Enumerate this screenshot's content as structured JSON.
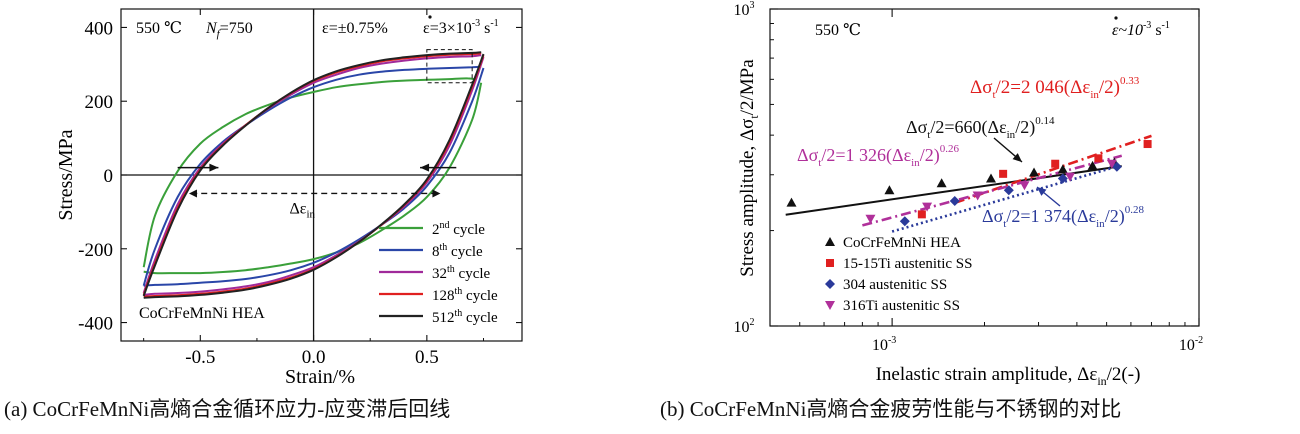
{
  "captions": {
    "a": "(a) CoCrFeMnNi高熵合金循环应力-应变滞后回线",
    "b": "(b) CoCrFeMnNi高熵合金疲劳性能与不锈钢的对比"
  },
  "chart_data": [
    {
      "type": "line",
      "panel": "a",
      "xlabel": "Strain/%",
      "ylabel": "Stress/MPa",
      "xlim": [
        -0.85,
        0.92
      ],
      "ylim": [
        -450,
        450
      ],
      "xticks": [
        "-0.5",
        "0.0",
        "0.5"
      ],
      "yticks": [
        "400",
        "200",
        "0",
        "-200",
        "-400"
      ],
      "header": {
        "temp": "550 ℃",
        "nf": "N",
        "nf_sub": "f",
        "nf_val": "=750",
        "eps_amp": "ε=±0.75%",
        "rate": "ε=3×10",
        "rate_exp": "-3",
        "rate_unit": " s",
        "rate_unit_exp": "-1"
      },
      "annotation": {
        "text": "Δε",
        "sub": "in"
      },
      "material_label": "CoCrFeMnNi HEA",
      "series": [
        {
          "name": "2nd cycle",
          "legend_num": "2",
          "legend_sup": "nd",
          "legend_rest": " cycle",
          "color": "#3aa03a",
          "upper": [
            [
              -0.75,
              -250
            ],
            [
              -0.7,
              -110
            ],
            [
              -0.6,
              10
            ],
            [
              -0.5,
              85
            ],
            [
              -0.4,
              130
            ],
            [
              -0.3,
              165
            ],
            [
              -0.2,
              190
            ],
            [
              -0.1,
              210
            ],
            [
              0.0,
              225
            ],
            [
              0.1,
              238
            ],
            [
              0.2,
              246
            ],
            [
              0.3,
              252
            ],
            [
              0.4,
              256
            ],
            [
              0.5,
              258
            ],
            [
              0.6,
              260
            ],
            [
              0.68,
              262
            ],
            [
              0.72,
              258
            ]
          ],
          "lower": [
            [
              0.74,
              250
            ],
            [
              0.7,
              150
            ],
            [
              0.6,
              20
            ],
            [
              0.5,
              -60
            ],
            [
              0.4,
              -110
            ],
            [
              0.3,
              -150
            ],
            [
              0.2,
              -185
            ],
            [
              0.1,
              -210
            ],
            [
              0.0,
              -228
            ],
            [
              -0.1,
              -240
            ],
            [
              -0.2,
              -250
            ],
            [
              -0.3,
              -258
            ],
            [
              -0.4,
              -263
            ],
            [
              -0.5,
              -266
            ],
            [
              -0.6,
              -266
            ],
            [
              -0.7,
              -266
            ],
            [
              -0.75,
              -262
            ]
          ]
        },
        {
          "name": "8th cycle",
          "legend_num": "8",
          "legend_sup": "th",
          "legend_rest": " cycle",
          "color": "#2a46a8",
          "upper": [
            [
              -0.75,
              -300
            ],
            [
              -0.7,
              -200
            ],
            [
              -0.6,
              -60
            ],
            [
              -0.5,
              30
            ],
            [
              -0.4,
              90
            ],
            [
              -0.3,
              135
            ],
            [
              -0.2,
              175
            ],
            [
              -0.1,
              210
            ],
            [
              0.0,
              238
            ],
            [
              0.1,
              258
            ],
            [
              0.2,
              272
            ],
            [
              0.3,
              280
            ],
            [
              0.4,
              285
            ],
            [
              0.5,
              288
            ],
            [
              0.6,
              290
            ],
            [
              0.7,
              292
            ],
            [
              0.74,
              294
            ]
          ],
          "lower": [
            [
              0.75,
              290
            ],
            [
              0.7,
              200
            ],
            [
              0.6,
              60
            ],
            [
              0.5,
              -30
            ],
            [
              0.4,
              -90
            ],
            [
              0.3,
              -135
            ],
            [
              0.2,
              -175
            ],
            [
              0.1,
              -210
            ],
            [
              0.0,
              -238
            ],
            [
              -0.1,
              -258
            ],
            [
              -0.2,
              -272
            ],
            [
              -0.3,
              -282
            ],
            [
              -0.4,
              -288
            ],
            [
              -0.5,
              -292
            ],
            [
              -0.6,
              -296
            ],
            [
              -0.7,
              -298
            ],
            [
              -0.75,
              -300
            ]
          ]
        },
        {
          "name": "32th cycle",
          "legend_num": "32",
          "legend_sup": "th",
          "legend_rest": " cycle",
          "color": "#a02a9a",
          "upper": [
            [
              -0.75,
              -320
            ],
            [
              -0.7,
              -230
            ],
            [
              -0.6,
              -80
            ],
            [
              -0.5,
              20
            ],
            [
              -0.4,
              85
            ],
            [
              -0.3,
              135
            ],
            [
              -0.2,
              180
            ],
            [
              -0.1,
              218
            ],
            [
              0.0,
              250
            ],
            [
              0.1,
              272
            ],
            [
              0.2,
              290
            ],
            [
              0.3,
              302
            ],
            [
              0.4,
              310
            ],
            [
              0.5,
              316
            ],
            [
              0.6,
              320
            ],
            [
              0.7,
              322
            ],
            [
              0.74,
              325
            ]
          ],
          "lower": [
            [
              0.75,
              320
            ],
            [
              0.7,
              230
            ],
            [
              0.6,
              80
            ],
            [
              0.5,
              -20
            ],
            [
              0.4,
              -85
            ],
            [
              0.3,
              -135
            ],
            [
              0.2,
              -180
            ],
            [
              0.1,
              -218
            ],
            [
              0.0,
              -250
            ],
            [
              -0.1,
              -272
            ],
            [
              -0.2,
              -290
            ],
            [
              -0.3,
              -302
            ],
            [
              -0.4,
              -310
            ],
            [
              -0.5,
              -316
            ],
            [
              -0.6,
              -320
            ],
            [
              -0.7,
              -322
            ],
            [
              -0.75,
              -325
            ]
          ]
        },
        {
          "name": "128th cycle",
          "legend_num": "128",
          "legend_sup": "th",
          "legend_rest": " cycle",
          "color": "#e02020",
          "upper": [
            [
              -0.75,
              -325
            ],
            [
              -0.7,
              -240
            ],
            [
              -0.6,
              -90
            ],
            [
              -0.5,
              15
            ],
            [
              -0.4,
              82
            ],
            [
              -0.3,
              135
            ],
            [
              -0.2,
              182
            ],
            [
              -0.1,
              222
            ],
            [
              0.0,
              255
            ],
            [
              0.1,
              278
            ],
            [
              0.2,
              295
            ],
            [
              0.3,
              308
            ],
            [
              0.4,
              316
            ],
            [
              0.5,
              322
            ],
            [
              0.6,
              326
            ],
            [
              0.7,
              328
            ],
            [
              0.74,
              330
            ]
          ],
          "lower": [
            [
              0.75,
              325
            ],
            [
              0.7,
              240
            ],
            [
              0.6,
              90
            ],
            [
              0.5,
              -15
            ],
            [
              0.4,
              -82
            ],
            [
              0.3,
              -135
            ],
            [
              0.2,
              -182
            ],
            [
              0.1,
              -222
            ],
            [
              0.0,
              -255
            ],
            [
              -0.1,
              -278
            ],
            [
              -0.2,
              -295
            ],
            [
              -0.3,
              -308
            ],
            [
              -0.4,
              -316
            ],
            [
              -0.5,
              -322
            ],
            [
              -0.6,
              -326
            ],
            [
              -0.7,
              -328
            ],
            [
              -0.75,
              -330
            ]
          ]
        },
        {
          "name": "512th cycle",
          "legend_num": "512",
          "legend_sup": "th",
          "legend_rest": " cycle",
          "color": "#222222",
          "upper": [
            [
              -0.75,
              -328
            ],
            [
              -0.7,
              -245
            ],
            [
              -0.6,
              -95
            ],
            [
              -0.5,
              12
            ],
            [
              -0.4,
              80
            ],
            [
              -0.3,
              134
            ],
            [
              -0.2,
              182
            ],
            [
              -0.1,
              223
            ],
            [
              0.0,
              257
            ],
            [
              0.1,
              281
            ],
            [
              0.2,
              298
            ],
            [
              0.3,
              311
            ],
            [
              0.4,
              319
            ],
            [
              0.5,
              325
            ],
            [
              0.6,
              329
            ],
            [
              0.7,
              331
            ],
            [
              0.74,
              333
            ]
          ],
          "lower": [
            [
              0.75,
              328
            ],
            [
              0.7,
              245
            ],
            [
              0.6,
              95
            ],
            [
              0.5,
              -12
            ],
            [
              0.4,
              -80
            ],
            [
              0.3,
              -134
            ],
            [
              0.2,
              -182
            ],
            [
              0.1,
              -223
            ],
            [
              0.0,
              -257
            ],
            [
              -0.1,
              -281
            ],
            [
              -0.2,
              -298
            ],
            [
              -0.3,
              -311
            ],
            [
              -0.4,
              -319
            ],
            [
              -0.5,
              -325
            ],
            [
              -0.6,
              -329
            ],
            [
              -0.7,
              -331
            ],
            [
              -0.75,
              -333
            ]
          ]
        }
      ]
    },
    {
      "type": "scatter",
      "panel": "b",
      "xscale": "log",
      "yscale": "log",
      "xlabel_main": "Inelastic strain amplitude, Δε",
      "xlabel_sub": "in",
      "xlabel_tail": "/2(-)",
      "ylabel_main": "Stress amplitude, Δσ",
      "ylabel_sub": "t",
      "ylabel_tail": "/2/MPa",
      "xlim": [
        0.0004,
        0.01
      ],
      "ylim": [
        100,
        1000
      ],
      "xticks": [
        {
          "value": 0.001,
          "base": "10",
          "exp": "-3"
        },
        {
          "value": 0.01,
          "base": "10",
          "exp": "-2"
        }
      ],
      "yticks": [
        {
          "value": 100,
          "base": "10",
          "exp": "2"
        },
        {
          "value": 1000,
          "base": "10",
          "exp": "3"
        }
      ],
      "header": {
        "temp": "550 ℃",
        "rate": "ε~10",
        "rate_exp": "-3",
        "rate_unit": " s",
        "rate_unit_exp": "-1"
      },
      "series": [
        {
          "name": "CoCrFeMnNi HEA",
          "marker": "triangle",
          "color": "#111111",
          "points": [
            [
              0.00047,
              245
            ],
            [
              0.00098,
              268
            ],
            [
              0.00145,
              282
            ],
            [
              0.0021,
              292
            ],
            [
              0.0029,
              305
            ],
            [
              0.0036,
              312
            ],
            [
              0.0045,
              320
            ],
            [
              0.0053,
              328
            ]
          ],
          "fit": {
            "prefix": "Δσ",
            "sub1": "t",
            "mid": "/2=660(Δε",
            "sub2": "in",
            "tail": "/2)",
            "exp": "0.14",
            "color": "#111111",
            "style": "solid",
            "coef": 660,
            "n": 0.14,
            "range": [
              0.00045,
              0.0056
            ]
          }
        },
        {
          "name": "15-15Ti austenitic SS",
          "marker": "square",
          "color": "#e02020",
          "points": [
            [
              0.00125,
              225
            ],
            [
              0.0023,
              302
            ],
            [
              0.0034,
              325
            ],
            [
              0.0047,
              338
            ],
            [
              0.0068,
              375
            ]
          ],
          "fit": {
            "prefix": "Δσ",
            "sub1": "t",
            "mid": "/2=2 046(Δε",
            "sub2": "in",
            "tail": "/2)",
            "exp": "0.33",
            "color": "#e02020",
            "style": "dashdot",
            "coef": 2046,
            "n": 0.33,
            "range": [
              0.0016,
              0.007
            ]
          }
        },
        {
          "name": "304 austenitic SS",
          "marker": "diamond",
          "color": "#2a3a9a",
          "points": [
            [
              0.0011,
              214
            ],
            [
              0.0016,
              248
            ],
            [
              0.0024,
              268
            ],
            [
              0.0036,
              292
            ],
            [
              0.0054,
              318
            ]
          ],
          "fit": {
            "prefix": "Δσ",
            "sub1": "t",
            "mid": "/2=1 374(Δε",
            "sub2": "in",
            "tail": "/2)",
            "exp": "0.28",
            "color": "#2a3a9a",
            "style": "dotted",
            "coef": 1374,
            "n": 0.28,
            "range": [
              0.001,
              0.0056
            ]
          }
        },
        {
          "name": "316Ti austenitic SS",
          "marker": "triangle-down",
          "color": "#b0309a",
          "points": [
            [
              0.00085,
              218
            ],
            [
              0.0013,
              238
            ],
            [
              0.0019,
              258
            ],
            [
              0.0027,
              278
            ],
            [
              0.0038,
              296
            ],
            [
              0.0052,
              325
            ]
          ],
          "fit": {
            "prefix": "Δσ",
            "sub1": "t",
            "mid": "/2=1 326(Δε",
            "sub2": "in",
            "tail": "/2)",
            "exp": "0.26",
            "color": "#b0309a",
            "style": "dashdot",
            "coef": 1326,
            "n": 0.26,
            "range": [
              0.0008,
              0.0056
            ]
          }
        }
      ]
    }
  ]
}
